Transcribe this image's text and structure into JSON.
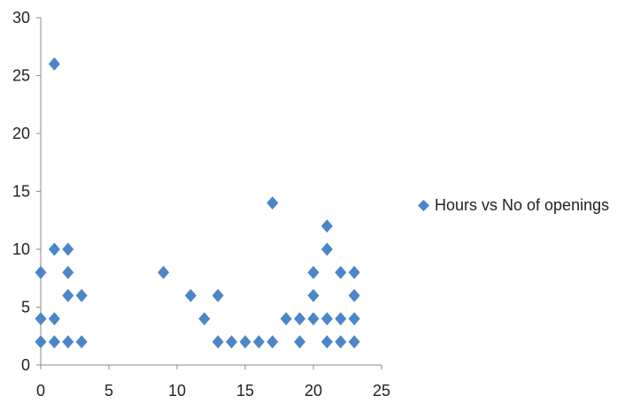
{
  "chart_data": {
    "type": "scatter",
    "title": "",
    "xlabel": "",
    "ylabel": "",
    "xlim": [
      0,
      25
    ],
    "ylim": [
      0,
      30
    ],
    "xticks": [
      0,
      5,
      10,
      15,
      20,
      25
    ],
    "yticks": [
      0,
      5,
      10,
      15,
      20,
      25,
      30
    ],
    "grid": false,
    "legend_position": "right",
    "marker": "diamond",
    "series": [
      {
        "name": "Hours vs No of openings",
        "color": "#4a86c8",
        "points": [
          [
            0,
            8
          ],
          [
            0,
            4
          ],
          [
            0,
            2
          ],
          [
            1,
            26
          ],
          [
            1,
            10
          ],
          [
            1,
            4
          ],
          [
            1,
            2
          ],
          [
            2,
            10
          ],
          [
            2,
            8
          ],
          [
            2,
            6
          ],
          [
            2,
            2
          ],
          [
            3,
            6
          ],
          [
            3,
            2
          ],
          [
            9,
            8
          ],
          [
            11,
            6
          ],
          [
            12,
            4
          ],
          [
            13,
            6
          ],
          [
            13,
            2
          ],
          [
            14,
            2
          ],
          [
            15,
            2
          ],
          [
            16,
            2
          ],
          [
            17,
            14
          ],
          [
            17,
            2
          ],
          [
            18,
            4
          ],
          [
            19,
            4
          ],
          [
            19,
            2
          ],
          [
            20,
            8
          ],
          [
            20,
            6
          ],
          [
            20,
            4
          ],
          [
            21,
            12
          ],
          [
            21,
            10
          ],
          [
            21,
            4
          ],
          [
            21,
            2
          ],
          [
            22,
            8
          ],
          [
            22,
            4
          ],
          [
            22,
            2
          ],
          [
            23,
            8
          ],
          [
            23,
            6
          ],
          [
            23,
            4
          ],
          [
            23,
            2
          ]
        ]
      }
    ]
  }
}
